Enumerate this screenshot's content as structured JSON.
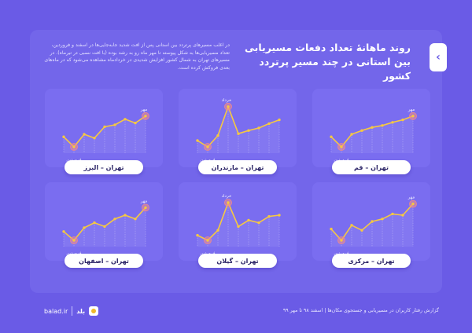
{
  "header": {
    "title": "روند ماهانهٔ تعداد دفعات مسیریابی بین استانی در چند مسیر پرتردد کشور",
    "tab_icon": "chevron-left-icon"
  },
  "description": "در اغلب مسیرهای پرتردد بین استانی پس از افت شدید جابه‌جایی‌ها در اسفند و فروردین، تعداد مسیریابی‌ها به شکل پیوسته تا مهر ماه رو به رشد بوده (با افت نسبی در تیرماه). در مسیرهای تهران به شمال کشور افزایش شدیدی در خردادماه مشاهده می‌شود که در ماه‌های بعدی فروکش کرده است.",
  "footer": {
    "text": "گزارش رفتار کاربران در مسیریابی و جستجوی مکان‌ها | اسفند ۹۸ تا مهر ۹۹",
    "site": "balad.ir",
    "brand": "بلد"
  },
  "colors": {
    "background": "#6a5be6",
    "card": "#7a6df0",
    "line": "#f5c842",
    "marker": "#f08a8a"
  },
  "chart_data": [
    {
      "type": "line",
      "title": "تهران – قم",
      "start_label": "فروردین",
      "peak_label": "مهر",
      "peak_index": 8,
      "min_index": 1,
      "values": [
        2.6,
        1.0,
        3.0,
        3.6,
        4.1,
        4.4,
        4.9,
        5.3,
        5.9
      ]
    },
    {
      "type": "line",
      "title": "تهران – مازندران",
      "start_label": "فروردین",
      "peak_label": "خرداد",
      "peak_index": 3,
      "min_index": 1,
      "values": [
        2.0,
        1.0,
        2.8,
        7.4,
        3.1,
        3.6,
        4.0,
        4.7,
        5.3
      ]
    },
    {
      "type": "line",
      "title": "تهران – البرز",
      "start_label": "فروردین",
      "peak_label": "مهر",
      "peak_index": 8,
      "min_index": 1,
      "values": [
        2.6,
        1.0,
        3.0,
        2.4,
        4.2,
        4.5,
        5.4,
        4.8,
        5.9
      ]
    },
    {
      "type": "line",
      "title": "تهران – مرکزی",
      "start_label": "فروردین",
      "peak_label": "مهر",
      "peak_index": 8,
      "min_index": 1,
      "values": [
        2.8,
        1.0,
        3.4,
        2.6,
        4.0,
        4.4,
        5.2,
        5.0,
        6.8
      ]
    },
    {
      "type": "line",
      "title": "تهران – گیلان",
      "start_label": "فروردین",
      "peak_label": "خرداد",
      "peak_index": 3,
      "min_index": 1,
      "values": [
        1.8,
        1.0,
        2.6,
        7.0,
        3.2,
        4.2,
        3.8,
        4.8,
        5.0
      ]
    },
    {
      "type": "line",
      "title": "تهران – اصفهان",
      "start_label": "فروردین",
      "peak_label": "مهر",
      "peak_index": 8,
      "min_index": 1,
      "values": [
        2.4,
        1.0,
        3.0,
        3.8,
        3.2,
        4.4,
        5.0,
        4.4,
        6.2
      ]
    }
  ]
}
